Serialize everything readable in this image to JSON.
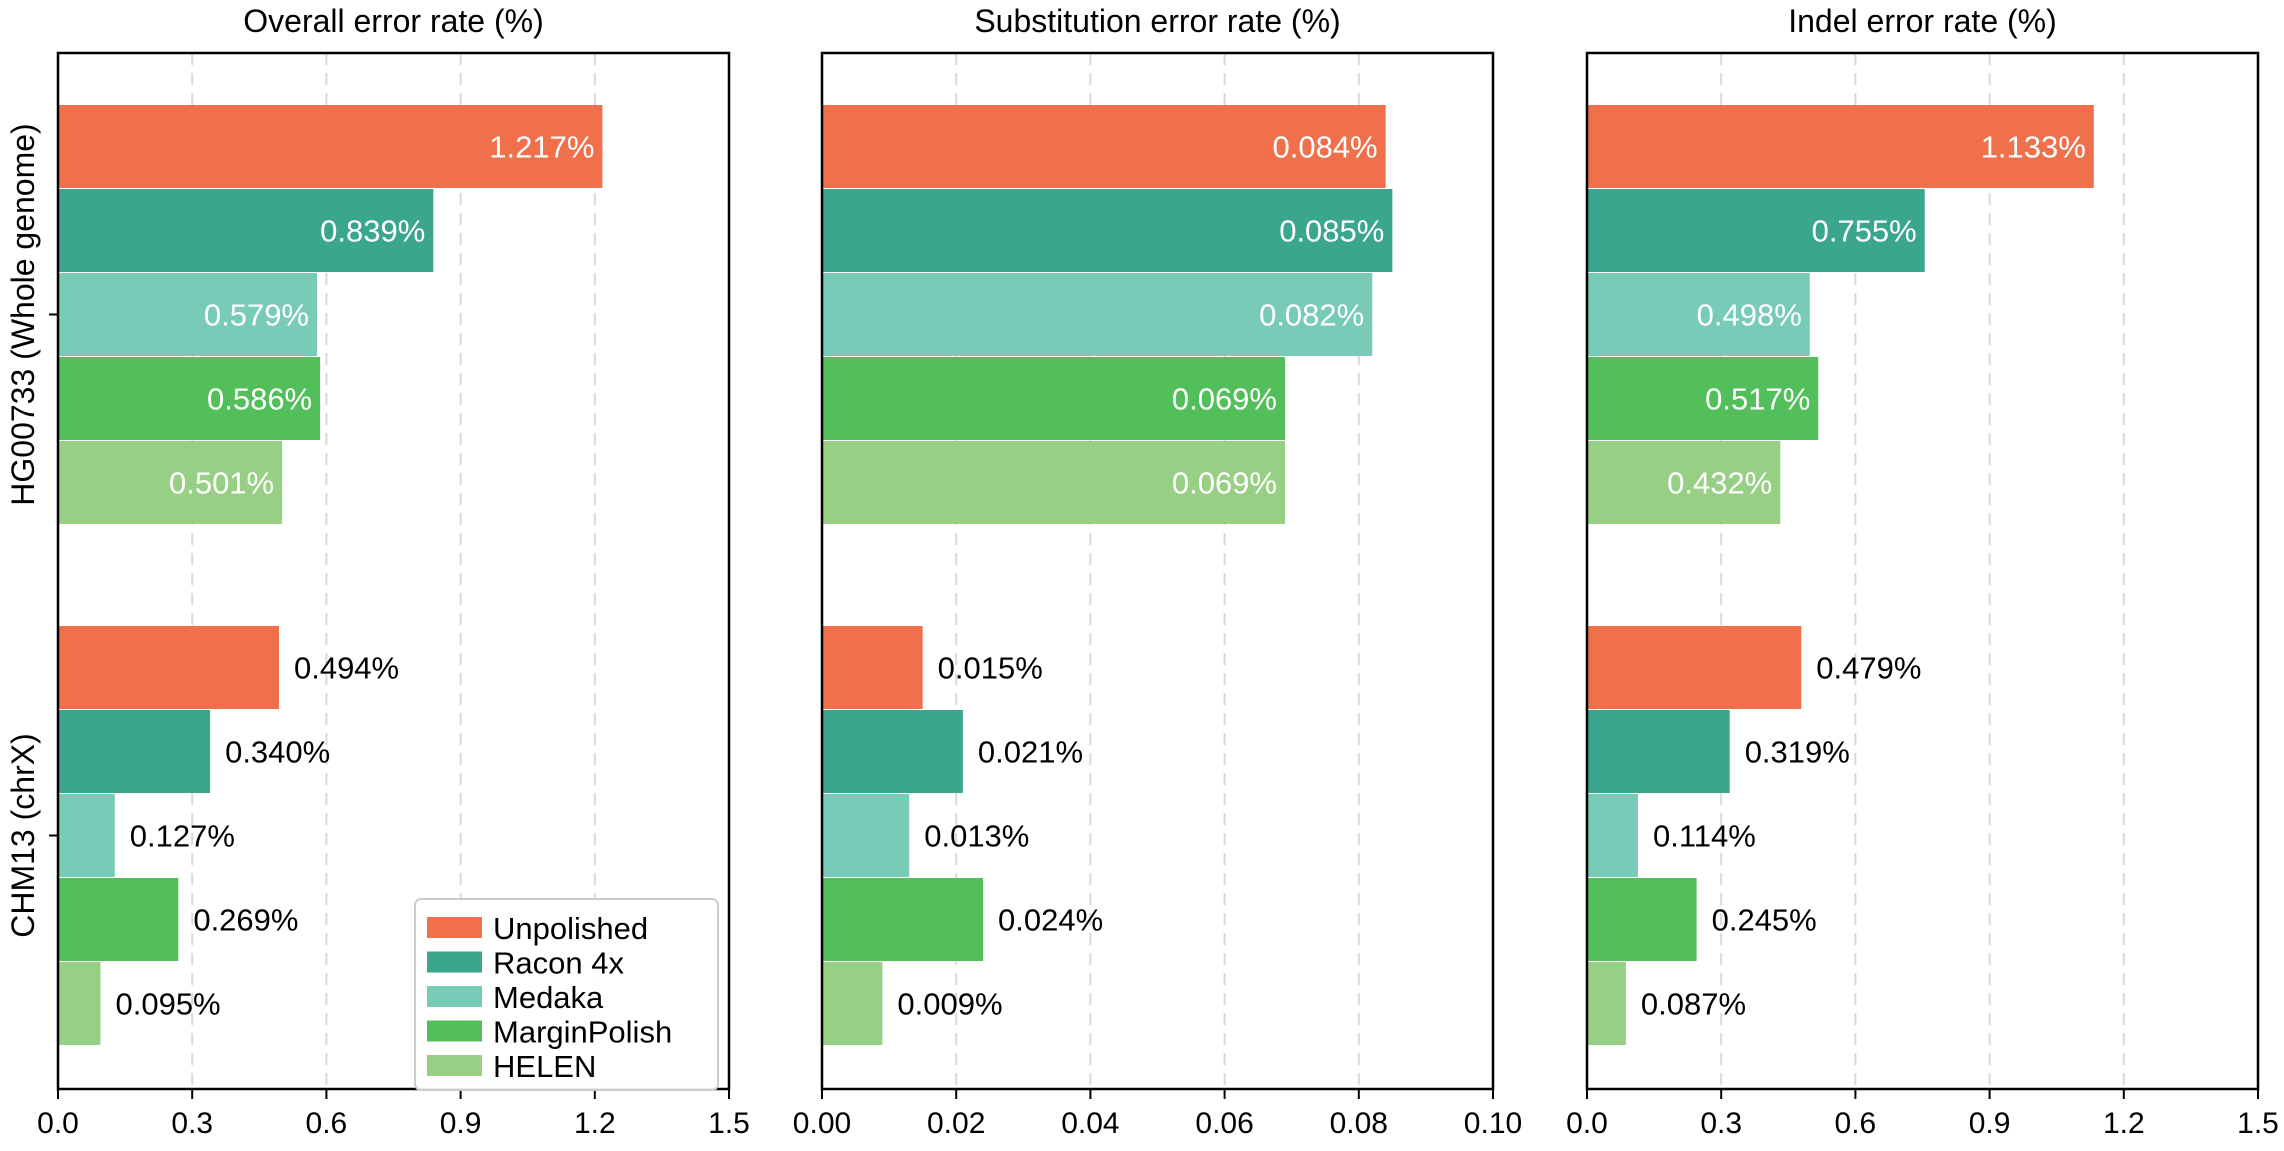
{
  "legend": {
    "location": "lower-right of first panel"
  },
  "chart_data": [
    {
      "type": "bar",
      "orientation": "horizontal",
      "title": "Overall error rate (%)",
      "xlabel": "",
      "ylabel": "",
      "xlim": [
        0,
        1.5
      ],
      "xticks": [
        "0.0",
        "0.3",
        "0.6",
        "0.9",
        "1.2",
        "1.5"
      ],
      "grid": "x, dashed",
      "categories": [
        "HG00733 (Whole genome)",
        "CHM13 (chrX)"
      ],
      "series": [
        {
          "name": "Unpolished",
          "color": "#f0704b",
          "values": [
            1.217,
            0.494
          ],
          "labels": [
            "1.217%",
            "0.494%"
          ]
        },
        {
          "name": "Racon 4x",
          "color": "#3aa68d",
          "values": [
            0.839,
            0.34
          ],
          "labels": [
            "0.839%",
            "0.340%"
          ]
        },
        {
          "name": "Medaka",
          "color": "#78ccb7",
          "values": [
            0.579,
            0.127
          ],
          "labels": [
            "0.579%",
            "0.127%"
          ]
        },
        {
          "name": "MarginPolish",
          "color": "#52bf5b",
          "values": [
            0.586,
            0.269
          ],
          "labels": [
            "0.586%",
            "0.269%"
          ]
        },
        {
          "name": "HELEN",
          "color": "#97d084",
          "values": [
            0.501,
            0.095
          ],
          "labels": [
            "0.501%",
            "0.095%"
          ]
        }
      ]
    },
    {
      "type": "bar",
      "orientation": "horizontal",
      "title": "Substitution error rate (%)",
      "xlabel": "",
      "ylabel": "",
      "xlim": [
        0,
        0.1
      ],
      "xticks": [
        "0.00",
        "0.02",
        "0.04",
        "0.06",
        "0.08",
        "0.10"
      ],
      "grid": "x, dashed",
      "categories": [
        "HG00733 (Whole genome)",
        "CHM13 (chrX)"
      ],
      "series": [
        {
          "name": "Unpolished",
          "color": "#f0704b",
          "values": [
            0.084,
            0.015
          ],
          "labels": [
            "0.084%",
            "0.015%"
          ]
        },
        {
          "name": "Racon 4x",
          "color": "#3aa68d",
          "values": [
            0.085,
            0.021
          ],
          "labels": [
            "0.085%",
            "0.021%"
          ]
        },
        {
          "name": "Medaka",
          "color": "#78ccb7",
          "values": [
            0.082,
            0.013
          ],
          "labels": [
            "0.082%",
            "0.013%"
          ]
        },
        {
          "name": "MarginPolish",
          "color": "#52bf5b",
          "values": [
            0.069,
            0.024
          ],
          "labels": [
            "0.069%",
            "0.024%"
          ]
        },
        {
          "name": "HELEN",
          "color": "#97d084",
          "values": [
            0.069,
            0.009
          ],
          "labels": [
            "0.069%",
            "0.009%"
          ]
        }
      ]
    },
    {
      "type": "bar",
      "orientation": "horizontal",
      "title": "Indel error rate (%)",
      "xlabel": "",
      "ylabel": "",
      "xlim": [
        0,
        1.5
      ],
      "xticks": [
        "0.0",
        "0.3",
        "0.6",
        "0.9",
        "1.2",
        "1.5"
      ],
      "grid": "x, dashed",
      "categories": [
        "HG00733 (Whole genome)",
        "CHM13 (chrX)"
      ],
      "series": [
        {
          "name": "Unpolished",
          "color": "#f0704b",
          "values": [
            1.133,
            0.479
          ],
          "labels": [
            "1.133%",
            "0.479%"
          ]
        },
        {
          "name": "Racon 4x",
          "color": "#3aa68d",
          "values": [
            0.755,
            0.319
          ],
          "labels": [
            "0.755%",
            "0.319%"
          ]
        },
        {
          "name": "Medaka",
          "color": "#78ccb7",
          "values": [
            0.498,
            0.114
          ],
          "labels": [
            "0.498%",
            "0.114%"
          ]
        },
        {
          "name": "MarginPolish",
          "color": "#52bf5b",
          "values": [
            0.517,
            0.245
          ],
          "labels": [
            "0.517%",
            "0.245%"
          ]
        },
        {
          "name": "HELEN",
          "color": "#97d084",
          "values": [
            0.432,
            0.087
          ],
          "labels": [
            "0.432%",
            "0.087%"
          ]
        }
      ]
    }
  ]
}
